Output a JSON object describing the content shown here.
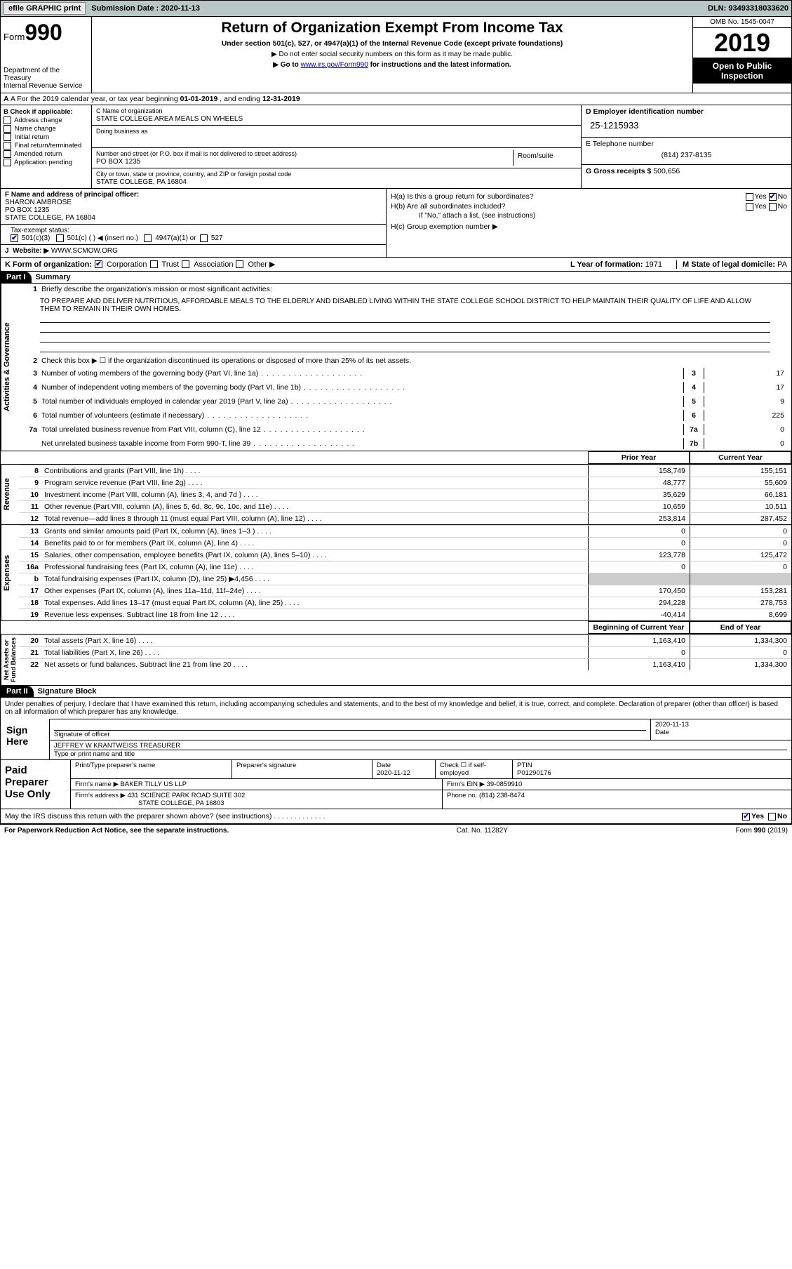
{
  "topbar": {
    "efile_label": "efile GRAPHIC print",
    "sub_label": "Submission Date :",
    "sub_date": "2020-11-13",
    "dln_label": "DLN:",
    "dln": "93493318033620"
  },
  "header": {
    "form_word": "Form",
    "form_num": "990",
    "dept": "Department of the Treasury\nInternal Revenue Service",
    "title": "Return of Organization Exempt From Income Tax",
    "subtitle": "Under section 501(c), 527, or 4947(a)(1) of the Internal Revenue Code (except private foundations)",
    "note1": "▶ Do not enter social security numbers on this form as it may be made public.",
    "note2_pre": "▶ Go to ",
    "note2_link": "www.irs.gov/Form990",
    "note2_post": " for instructions and the latest information.",
    "omb": "OMB No. 1545-0047",
    "year": "2019",
    "public": "Open to Public Inspection"
  },
  "row_a": {
    "text_pre": "A For the 2019 calendar year, or tax year beginning ",
    "begin": "01-01-2019",
    "mid": "   , and ending ",
    "end": "12-31-2019"
  },
  "box_b": {
    "title": "B Check if applicable:",
    "items": [
      "Address change",
      "Name change",
      "Initial return",
      "Final return/terminated",
      "Amended return",
      "Application pending"
    ]
  },
  "box_c": {
    "name_label": "C Name of organization",
    "name": "STATE COLLEGE AREA MEALS ON WHEELS",
    "dba_label": "Doing business as",
    "addr_label": "Number and street (or P.O. box if mail is not delivered to street address)",
    "room_label": "Room/suite",
    "addr": "PO BOX 1235",
    "city_label": "City or town, state or province, country, and ZIP or foreign postal code",
    "city": "STATE COLLEGE, PA  16804"
  },
  "box_d": {
    "label": "D Employer identification number",
    "ein": "25-1215933"
  },
  "box_e": {
    "label": "E Telephone number",
    "phone": "(814) 237-8135"
  },
  "box_g": {
    "label": "G Gross receipts $",
    "value": "500,656"
  },
  "box_f": {
    "label": "F  Name and address of principal officer:",
    "name": "SHARON AMBROSE",
    "addr1": "PO BOX 1235",
    "addr2": "STATE COLLEGE, PA  16804"
  },
  "box_h": {
    "ha": "H(a)  Is this a group return for subordinates?",
    "hb": "H(b)  Are all subordinates included?",
    "hb_note": "If \"No,\" attach a list. (see instructions)",
    "hc": "H(c)  Group exemption number ▶",
    "yes": "Yes",
    "no": "No"
  },
  "tax_status": {
    "label": "Tax-exempt status:",
    "o1": "501(c)(3)",
    "o2": "501(c) (  ) ◀ (insert no.)",
    "o3": "4947(a)(1) or",
    "o4": "527"
  },
  "row_j": {
    "label": "J",
    "text": "Website: ▶",
    "url": "WWW.SCMOW.ORG"
  },
  "row_k": {
    "label": "K Form of organization:",
    "opts": [
      "Corporation",
      "Trust",
      "Association",
      "Other ▶"
    ],
    "l_label": "L Year of formation:",
    "l_val": "1971",
    "m_label": "M State of legal domicile:",
    "m_val": "PA"
  },
  "part1": {
    "hdr": "Part I",
    "title": "Summary"
  },
  "summary": {
    "l1_label": "1",
    "l1_text": "Briefly describe the organization's mission or most significant activities:",
    "l1_mission": "TO PREPARE AND DELIVER NUTRITIOUS, AFFORDABLE MEALS TO THE ELDERLY AND DISABLED LIVING WITHIN THE STATE COLLEGE SCHOOL DISTRICT TO HELP MAINTAIN THEIR QUALITY OF LIFE AND ALLOW THEM TO REMAIN IN THEIR OWN HOMES.",
    "l2": "Check this box ▶ ☐  if the organization discontinued its operations or disposed of more than 25% of its net assets.",
    "lines_simple": [
      {
        "n": "3",
        "t": "Number of voting members of the governing body (Part VI, line 1a)",
        "box": "3",
        "v": "17"
      },
      {
        "n": "4",
        "t": "Number of independent voting members of the governing body (Part VI, line 1b)",
        "box": "4",
        "v": "17"
      },
      {
        "n": "5",
        "t": "Total number of individuals employed in calendar year 2019 (Part V, line 2a)",
        "box": "5",
        "v": "9"
      },
      {
        "n": "6",
        "t": "Total number of volunteers (estimate if necessary)",
        "box": "6",
        "v": "225"
      },
      {
        "n": "7a",
        "t": "Total unrelated business revenue from Part VIII, column (C), line 12",
        "box": "7a",
        "v": "0"
      },
      {
        "n": "",
        "t": "Net unrelated business taxable income from Form 990-T, line 39",
        "box": "7b",
        "v": "0"
      }
    ]
  },
  "cols": {
    "prior": "Prior Year",
    "curr": "Current Year",
    "beg": "Beginning of Current Year",
    "end": "End of Year"
  },
  "revenue": {
    "label": "Revenue",
    "lines": [
      {
        "n": "8",
        "t": "Contributions and grants (Part VIII, line 1h)",
        "p": "158,749",
        "c": "155,151"
      },
      {
        "n": "9",
        "t": "Program service revenue (Part VIII, line 2g)",
        "p": "48,777",
        "c": "55,609"
      },
      {
        "n": "10",
        "t": "Investment income (Part VIII, column (A), lines 3, 4, and 7d )",
        "p": "35,629",
        "c": "66,181"
      },
      {
        "n": "11",
        "t": "Other revenue (Part VIII, column (A), lines 5, 6d, 8c, 9c, 10c, and 11e)",
        "p": "10,659",
        "c": "10,511"
      },
      {
        "n": "12",
        "t": "Total revenue—add lines 8 through 11 (must equal Part VIII, column (A), line 12)",
        "p": "253,814",
        "c": "287,452"
      }
    ]
  },
  "expenses": {
    "label": "Expenses",
    "lines": [
      {
        "n": "13",
        "t": "Grants and similar amounts paid (Part IX, column (A), lines 1–3 )",
        "p": "0",
        "c": "0"
      },
      {
        "n": "14",
        "t": "Benefits paid to or for members (Part IX, column (A), line 4)",
        "p": "0",
        "c": "0"
      },
      {
        "n": "15",
        "t": "Salaries, other compensation, employee benefits (Part IX, column (A), lines 5–10)",
        "p": "123,778",
        "c": "125,472"
      },
      {
        "n": "16a",
        "t": "Professional fundraising fees (Part IX, column (A), line 11e)",
        "p": "0",
        "c": "0"
      },
      {
        "n": "b",
        "t": "Total fundraising expenses (Part IX, column (D), line 25) ▶4,456",
        "p": "",
        "c": "",
        "shaded": true
      },
      {
        "n": "17",
        "t": "Other expenses (Part IX, column (A), lines 11a–11d, 11f–24e)",
        "p": "170,450",
        "c": "153,281"
      },
      {
        "n": "18",
        "t": "Total expenses. Add lines 13–17 (must equal Part IX, column (A), line 25)",
        "p": "294,228",
        "c": "278,753"
      },
      {
        "n": "19",
        "t": "Revenue less expenses. Subtract line 18 from line 12",
        "p": "-40,414",
        "c": "8,699"
      }
    ]
  },
  "netassets": {
    "label": "Net Assets or Fund Balances",
    "lines": [
      {
        "n": "20",
        "t": "Total assets (Part X, line 16)",
        "p": "1,163,410",
        "c": "1,334,300"
      },
      {
        "n": "21",
        "t": "Total liabilities (Part X, line 26)",
        "p": "0",
        "c": "0"
      },
      {
        "n": "22",
        "t": "Net assets or fund balances. Subtract line 21 from line 20",
        "p": "1,163,410",
        "c": "1,334,300"
      }
    ]
  },
  "part2": {
    "hdr": "Part II",
    "title": "Signature Block"
  },
  "sig": {
    "penalty": "Under penalties of perjury, I declare that I have examined this return, including accompanying schedules and statements, and to the best of my knowledge and belief, it is true, correct, and complete. Declaration of preparer (other than officer) is based on all information of which preparer has any knowledge.",
    "sign_here": "Sign Here",
    "sig_officer": "Signature of officer",
    "date_label": "Date",
    "sig_date": "2020-11-13",
    "officer_name": "JEFFREY W KRANTWEISS  TREASURER",
    "type_name": "Type or print name and title",
    "paid": "Paid Preparer Use Only",
    "prep_name_label": "Print/Type preparer's name",
    "prep_sig_label": "Preparer's signature",
    "prep_date": "2020-11-12",
    "check_self": "Check ☐ if self-employed",
    "ptin_label": "PTIN",
    "ptin": "P01290176",
    "firm_name_label": "Firm's name    ▶",
    "firm_name": "BAKER TILLY US LLP",
    "firm_ein_label": "Firm's EIN ▶",
    "firm_ein": "39-0859910",
    "firm_addr_label": "Firm's address ▶",
    "firm_addr1": "431 SCIENCE PARK ROAD SUITE 302",
    "firm_addr2": "STATE COLLEGE, PA  16803",
    "firm_phone_label": "Phone no.",
    "firm_phone": "(814) 238-8474",
    "discuss": "May the IRS discuss this return with the preparer shown above? (see instructions)"
  },
  "footer": {
    "left": "For Paperwork Reduction Act Notice, see the separate instructions.",
    "mid": "Cat. No. 11282Y",
    "right": "Form 990 (2019)"
  },
  "vlabels": {
    "act": "Activities & Governance",
    "rev": "Revenue",
    "exp": "Expenses",
    "net": "Net Assets or\nFund Balances"
  }
}
